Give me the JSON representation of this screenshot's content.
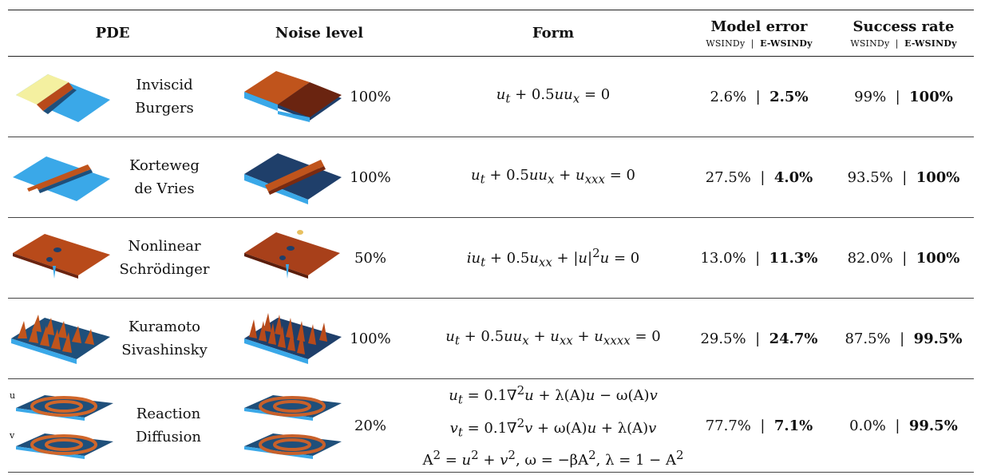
{
  "header": {
    "pde": "PDE",
    "noise": "Noise level",
    "form": "Form",
    "model_error": "Model error",
    "success_rate": "Success rate",
    "sub_left": "WSINDy",
    "sub_sep": "|",
    "sub_right": "E-WSINDy"
  },
  "rows": [
    {
      "name1": "Inviscid",
      "name2": "Burgers",
      "noise": "100%",
      "form": [
        "u_t + 0.5uu_x = 0"
      ],
      "err_a": "2.6%",
      "err_b": "2.5%",
      "sr_a": "99%",
      "sr_b": "100%"
    },
    {
      "name1": "Korteweg",
      "name2": "de Vries",
      "noise": "100%",
      "form": [
        "u_t + 0.5uu_x + u_xxx = 0"
      ],
      "err_a": "27.5%",
      "err_b": "4.0%",
      "sr_a": "93.5%",
      "sr_b": "100%"
    },
    {
      "name1": "Nonlinear",
      "name2": "Schrödinger",
      "noise": "50%",
      "form": [
        "iu_t + 0.5u_xx + |u|²u = 0"
      ],
      "err_a": "13.0%",
      "err_b": "11.3%",
      "sr_a": "82.0%",
      "sr_b": "100%"
    },
    {
      "name1": "Kuramoto",
      "name2": "Sivashinsky",
      "noise": "100%",
      "form": [
        "u_t + 0.5uu_x + u_xx + u_xxxx = 0"
      ],
      "err_a": "29.5%",
      "err_b": "24.7%",
      "sr_a": "87.5%",
      "sr_b": "99.5%"
    },
    {
      "name1": "Reaction",
      "name2": "Diffusion",
      "noise": "20%",
      "form": [
        "u_t = 0.1∇²u + λ(A)u − ω(A)v",
        "v_t = 0.1∇²v + ω(A)u + λ(A)v",
        "A² = u² + v², ω = −βA², λ = 1 − A²"
      ],
      "err_a": "77.7%",
      "err_b": "7.1%",
      "sr_a": "0.0%",
      "sr_b": "99.5%",
      "label_u": "u",
      "label_v": "v"
    }
  ],
  "colors": {
    "surface_blue": "#3aa8e8",
    "surface_yellow": "#f4f0a0",
    "surface_orange": "#b84a1a",
    "surface_dark": "#1f4f7a"
  }
}
